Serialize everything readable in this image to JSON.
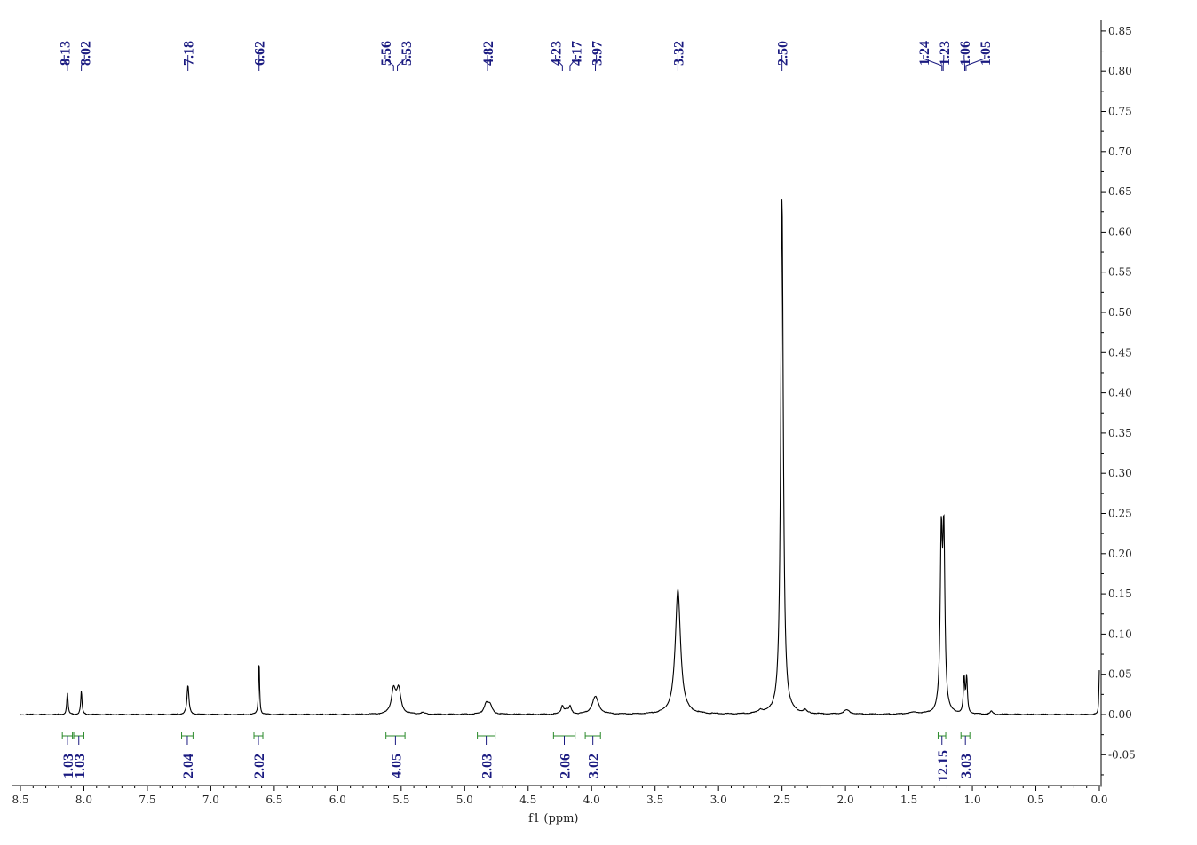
{
  "chart_data": {
    "type": "line",
    "title": "",
    "xlabel": "f1 (ppm)",
    "ylabel": "",
    "x_reversed": true,
    "xlim": [
      8.5,
      0.0
    ],
    "ylim": [
      -0.09,
      0.86
    ],
    "x_ticks": [
      "8.5",
      "8.0",
      "7.5",
      "7.0",
      "6.5",
      "6.0",
      "5.5",
      "5.0",
      "4.5",
      "4.0",
      "3.5",
      "3.0",
      "2.5",
      "2.0",
      "1.5",
      "1.0",
      "0.5",
      "0.0"
    ],
    "y_ticks": [
      "0.85",
      "0.80",
      "0.75",
      "0.70",
      "0.65",
      "0.60",
      "0.55",
      "0.50",
      "0.45",
      "0.40",
      "0.35",
      "0.30",
      "0.25",
      "0.20",
      "0.15",
      "0.10",
      "0.05",
      "0.00",
      "-0.05"
    ],
    "y_axis_position": "right",
    "grid": false,
    "peak_labels": [
      "8.13",
      "8.02",
      "7.18",
      "6.62",
      "5.56",
      "5.53",
      "4.82",
      "4.23",
      "4.17",
      "3.97",
      "3.32",
      "2.50",
      "1.24",
      "1.23",
      "1.06",
      "1.05"
    ],
    "integrals": [
      {
        "label": "1.03",
        "from": 8.17,
        "to": 8.09
      },
      {
        "label": "1.03",
        "from": 8.08,
        "to": 8.0
      },
      {
        "label": "2.04",
        "from": 7.23,
        "to": 7.14
      },
      {
        "label": "2.02",
        "from": 6.66,
        "to": 6.59
      },
      {
        "label": "4.05",
        "from": 5.62,
        "to": 5.47
      },
      {
        "label": "2.03",
        "from": 4.9,
        "to": 4.76
      },
      {
        "label": "2.06",
        "from": 4.3,
        "to": 4.13
      },
      {
        "label": "3.02",
        "from": 4.05,
        "to": 3.93
      },
      {
        "label": "12.15",
        "from": 1.27,
        "to": 1.21
      },
      {
        "label": "3.03",
        "from": 1.09,
        "to": 1.02
      }
    ],
    "series": [
      {
        "peaks": [
          {
            "x": 8.13,
            "height": 0.027,
            "width": 0.006
          },
          {
            "x": 8.02,
            "height": 0.029,
            "width": 0.006
          },
          {
            "x": 7.18,
            "height": 0.036,
            "width": 0.009
          },
          {
            "x": 6.62,
            "height": 0.068,
            "width": 0.005
          },
          {
            "x": 5.56,
            "height": 0.03,
            "width": 0.02
          },
          {
            "x": 5.52,
            "height": 0.03,
            "width": 0.02
          },
          {
            "x": 5.33,
            "height": 0.002,
            "width": 0.02
          },
          {
            "x": 4.83,
            "height": 0.013,
            "width": 0.02
          },
          {
            "x": 4.8,
            "height": 0.01,
            "width": 0.02
          },
          {
            "x": 4.23,
            "height": 0.01,
            "width": 0.012
          },
          {
            "x": 4.17,
            "height": 0.009,
            "width": 0.012
          },
          {
            "x": 4.2,
            "height": 0.005,
            "width": 0.015
          },
          {
            "x": 3.97,
            "height": 0.022,
            "width": 0.03
          },
          {
            "x": 3.32,
            "height": 0.155,
            "width": 0.025
          },
          {
            "x": 2.67,
            "height": 0.004,
            "width": 0.02
          },
          {
            "x": 2.5,
            "height": 0.645,
            "width": 0.012
          },
          {
            "x": 2.32,
            "height": 0.004,
            "width": 0.015
          },
          {
            "x": 1.99,
            "height": 0.005,
            "width": 0.03
          },
          {
            "x": 1.46,
            "height": 0.002,
            "width": 0.06
          },
          {
            "x": 1.245,
            "height": 0.205,
            "width": 0.01
          },
          {
            "x": 1.225,
            "height": 0.21,
            "width": 0.01
          },
          {
            "x": 1.065,
            "height": 0.044,
            "width": 0.007
          },
          {
            "x": 1.045,
            "height": 0.044,
            "width": 0.007
          },
          {
            "x": 0.85,
            "height": 0.004,
            "width": 0.01
          },
          {
            "x": 0.0,
            "height": 0.055,
            "width": 0.004
          }
        ]
      }
    ]
  }
}
